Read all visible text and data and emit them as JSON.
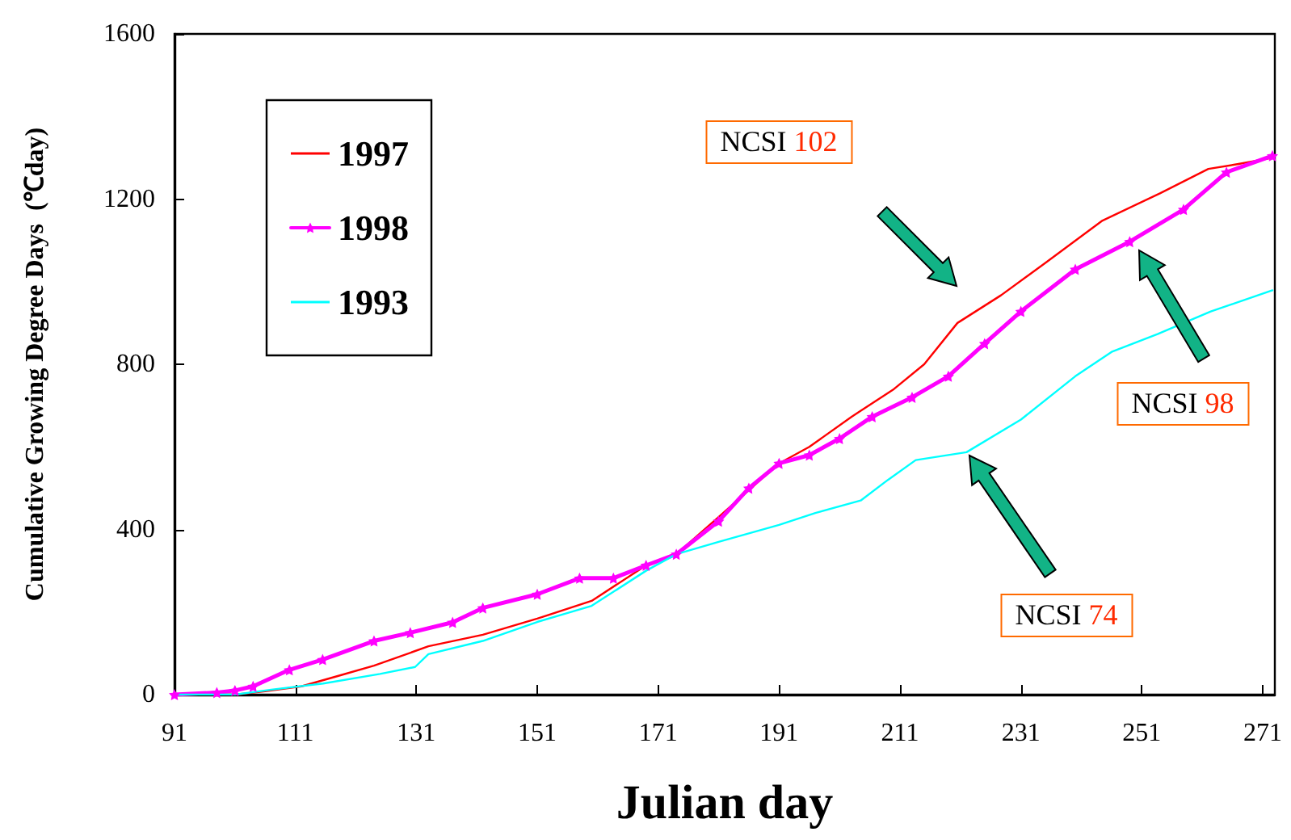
{
  "chart_data": {
    "type": "line",
    "xlabel": "Julian day",
    "ylabel": "Cumulative Growing Degree Days  (℃day)",
    "xlim": [
      91,
      273
    ],
    "xticks": [
      91,
      111,
      131,
      151,
      171,
      191,
      211,
      231,
      251,
      271
    ],
    "ylim": [
      0,
      1600
    ],
    "yticks": [
      0,
      400,
      800,
      1200,
      1600
    ],
    "grid": false,
    "legend": "top left",
    "series": [
      {
        "name": "1997",
        "color": "#ff0000",
        "marker": "none",
        "x": [
          91,
          101,
          106,
          112,
          118,
          124,
          133,
          142,
          151,
          160,
          169,
          174,
          181,
          191,
          196,
          203,
          210,
          215,
          220.5,
          227.7,
          235,
          244.5,
          254,
          262,
          267,
          272.6
        ],
        "values": [
          0,
          0,
          8,
          20,
          45,
          70,
          117,
          145,
          184,
          227,
          313,
          340,
          430,
          560,
          600,
          673,
          740,
          800,
          900,
          967,
          1045,
          1148,
          1214,
          1273,
          1285,
          1300
        ]
      },
      {
        "name": "1998",
        "color": "#ff00ff",
        "marker": "star",
        "x": [
          91,
          98,
          101,
          104,
          110,
          115.5,
          124,
          130,
          137,
          142,
          151,
          158,
          163.6,
          169,
          174,
          181,
          186,
          191,
          196,
          201,
          206.4,
          213,
          219,
          225,
          231,
          240,
          249,
          257.9,
          265,
          272.6
        ],
        "values": [
          0,
          5,
          10,
          20,
          60,
          85,
          130,
          150,
          175,
          210,
          243,
          282,
          282,
          313,
          340,
          420,
          500,
          560,
          580,
          620,
          673,
          720,
          771,
          850,
          928,
          1030,
          1097,
          1175,
          1265,
          1305
        ]
      },
      {
        "name": "1993",
        "color": "#00ffff",
        "marker": "none",
        "x": [
          91,
          101,
          107,
          115.6,
          125,
          130.8,
          133,
          142,
          151,
          160,
          169,
          174,
          181,
          191,
          197,
          204.5,
          209,
          213.6,
          222,
          231,
          240,
          246,
          253.6,
          262.4,
          272.6
        ],
        "values": [
          0,
          0,
          12,
          27,
          50,
          67,
          98,
          130,
          176,
          215,
          300,
          340,
          370,
          411,
          440,
          470,
          520,
          568,
          587,
          666,
          771,
          830,
          873,
          928,
          979
        ]
      }
    ],
    "annotations": [
      "NCSI 102",
      "NCSI 98",
      "NCSI 74"
    ]
  }
}
